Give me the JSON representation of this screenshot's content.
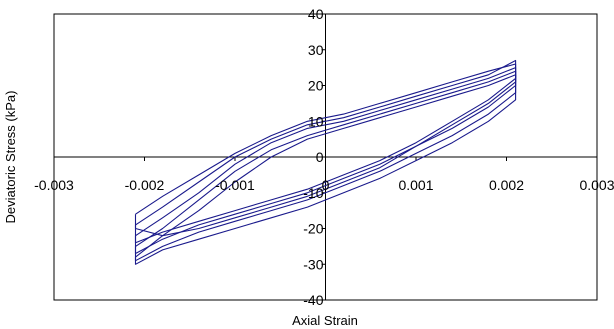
{
  "chart_data": {
    "type": "line",
    "title": "",
    "xlabel": "Axial Strain",
    "ylabel": "Deviatoric Stress (kPa)",
    "xlim": [
      -0.003,
      0.003
    ],
    "ylim": [
      -40,
      40
    ],
    "x_ticks": [
      -0.003,
      -0.002,
      -0.001,
      0,
      0.001,
      0.002,
      0.003
    ],
    "x_tick_labels": [
      "-0.003",
      "-0.002",
      "-0.001",
      "0",
      "0.001",
      "0.002",
      "0.003"
    ],
    "y_ticks": [
      -40,
      -30,
      -20,
      -10,
      0,
      10,
      20,
      30,
      40
    ],
    "y_tick_labels": [
      "-40",
      "-30",
      "-20",
      "-10",
      "0",
      "10",
      "20",
      "30",
      "40"
    ],
    "grid": false,
    "legend": "none",
    "line_color": "#1a1a8c",
    "series": [
      {
        "x": [
          -0.0021,
          -0.0018,
          -0.0014,
          -0.001,
          -0.0006,
          -0.0002,
          0.0002,
          0.0006,
          0.001,
          0.0014,
          0.0018,
          0.0021,
          0.0021,
          0.0018,
          0.0014,
          0.001,
          0.0006,
          0.0002,
          -0.0002,
          -0.0006,
          -0.001,
          -0.0014,
          -0.0018,
          -0.0021,
          -0.0021
        ],
        "y": [
          -25,
          -20,
          -12,
          -4,
          2,
          6,
          9,
          12,
          15,
          18,
          21,
          24,
          20,
          14,
          8,
          3,
          -2,
          -6,
          -10,
          -13,
          -16,
          -19,
          -23,
          -27,
          -25
        ]
      },
      {
        "x": [
          -0.0021,
          -0.0018,
          -0.0014,
          -0.001,
          -0.0006,
          -0.0002,
          0.0002,
          0.0006,
          0.001,
          0.0014,
          0.0018,
          0.0021,
          0.0021,
          0.0018,
          0.0014,
          0.001,
          0.0006,
          0.0002,
          -0.0002,
          -0.0006,
          -0.001,
          -0.0014,
          -0.0018,
          -0.0021,
          -0.0021
        ],
        "y": [
          -22,
          -17,
          -10,
          -2,
          4,
          8,
          10,
          13,
          16,
          19,
          22,
          25,
          18,
          12,
          6,
          1,
          -4,
          -8,
          -12,
          -15,
          -18,
          -21,
          -25,
          -29,
          -22
        ]
      },
      {
        "x": [
          -0.0021,
          -0.0018,
          -0.0014,
          -0.001,
          -0.0006,
          -0.0002,
          0.0002,
          0.0006,
          0.001,
          0.0014,
          0.0018,
          0.0021,
          0.0021,
          0.0018,
          0.0014,
          0.001,
          0.0006,
          0.0002,
          -0.0002,
          -0.0006,
          -0.001,
          -0.0014,
          -0.0018,
          -0.0021,
          -0.0021
        ],
        "y": [
          -19,
          -14,
          -7,
          0,
          5,
          9,
          11,
          14,
          17,
          20,
          23,
          27,
          22,
          16,
          10,
          4,
          -1,
          -5,
          -9,
          -12,
          -15,
          -18,
          -21,
          -24,
          -19
        ]
      },
      {
        "x": [
          -0.0021,
          -0.0018,
          -0.0014,
          -0.001,
          -0.0006,
          -0.0002,
          0.0002,
          0.0006,
          0.001,
          0.0014,
          0.0018,
          0.0021,
          0.0021,
          0.0018,
          0.0014,
          0.001,
          0.0006,
          0.0002,
          -0.0002,
          -0.0006,
          -0.001,
          -0.0014,
          -0.0018,
          -0.0021,
          -0.0021
        ],
        "y": [
          -28,
          -22,
          -15,
          -7,
          0,
          5,
          8,
          11,
          14,
          17,
          20,
          23,
          16,
          10,
          4,
          -1,
          -6,
          -10,
          -14,
          -17,
          -20,
          -23,
          -26,
          -30,
          -28
        ]
      },
      {
        "x": [
          -0.0021,
          -0.0018,
          -0.0014,
          -0.001,
          -0.0006,
          -0.0002,
          0.0002,
          0.0006,
          0.001,
          0.0014,
          0.0018,
          0.0021,
          0.0021,
          0.0018,
          0.0014,
          0.001,
          0.0006,
          0.0002,
          -0.0002,
          -0.0006,
          -0.001,
          -0.0014,
          -0.0018,
          -0.0021,
          -0.0021
        ],
        "y": [
          -16,
          -11,
          -5,
          1,
          6,
          10,
          12,
          15,
          18,
          21,
          24,
          26,
          21,
          15,
          9,
          3,
          -3,
          -7,
          -11,
          -14,
          -17,
          -20,
          -22,
          -20,
          -16
        ]
      }
    ]
  }
}
